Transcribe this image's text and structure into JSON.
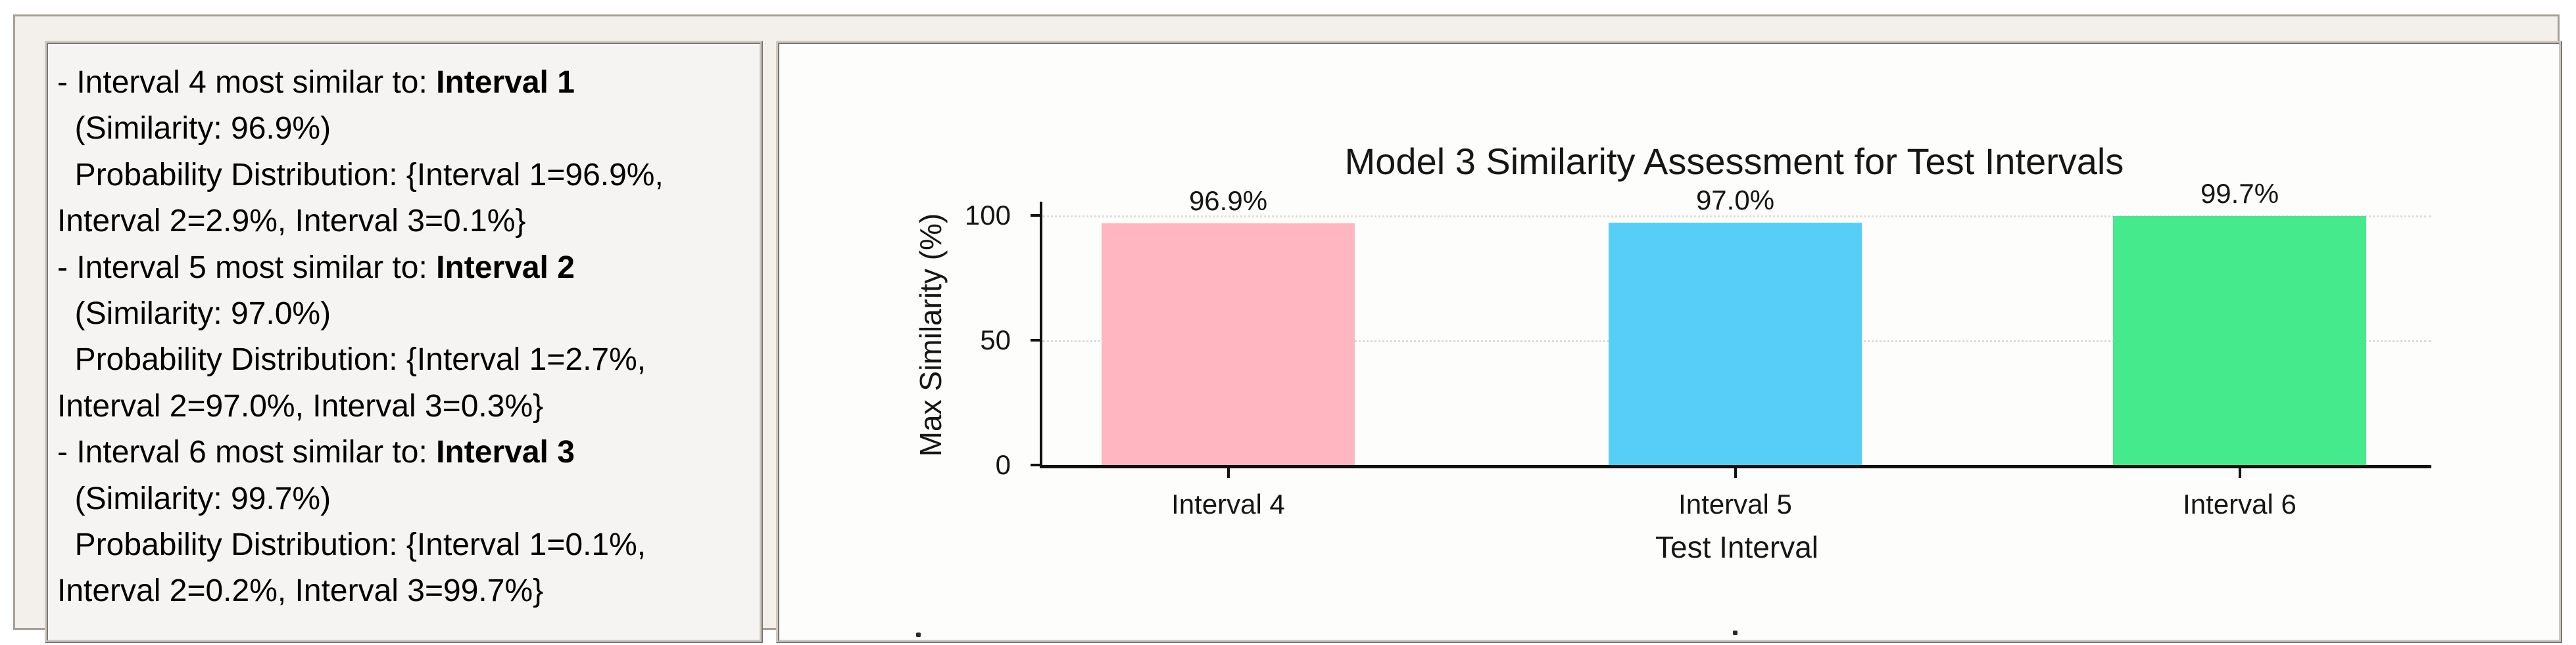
{
  "left_panel": {
    "lines": [
      {
        "pre": "- Interval 4 most similar to: ",
        "bold": "Interval 1"
      },
      {
        "pre": "  (Similarity: 96.9%)",
        "bold": ""
      },
      {
        "pre": "  Probability Distribution: {Interval 1=96.9%,",
        "bold": ""
      },
      {
        "pre": "Interval 2=2.9%, Interval 3=0.1%}",
        "bold": ""
      },
      {
        "pre": "- Interval 5 most similar to: ",
        "bold": "Interval 2"
      },
      {
        "pre": "  (Similarity: 97.0%)",
        "bold": ""
      },
      {
        "pre": "  Probability Distribution: {Interval 1=2.7%,",
        "bold": ""
      },
      {
        "pre": "Interval 2=97.0%, Interval 3=0.3%}",
        "bold": ""
      },
      {
        "pre": "- Interval 6 most similar to: ",
        "bold": "Interval 3"
      },
      {
        "pre": "  (Similarity: 99.7%)",
        "bold": ""
      },
      {
        "pre": "  Probability Distribution: {Interval 1=0.1%,",
        "bold": ""
      },
      {
        "pre": "Interval 2=0.2%, Interval 3=99.7%}",
        "bold": ""
      }
    ]
  },
  "chart_data": {
    "type": "bar",
    "title": "Model 3 Similarity Assessment for Test Intervals",
    "xlabel": "Test Interval",
    "ylabel": "Max Similarity (%)",
    "categories": [
      "Interval 4",
      "Interval 5",
      "Interval 6"
    ],
    "values": [
      96.9,
      97.0,
      99.7
    ],
    "bar_labels": [
      "96.9%",
      "97.0%",
      "99.7%"
    ],
    "bar_colors": [
      "#FFB6C1",
      "#57CEF8",
      "#44EA8C"
    ],
    "yticks": [
      0,
      50,
      100
    ],
    "ylim": [
      0,
      105.5
    ],
    "grid": "horizontal dotted at y=50 and y=100",
    "legend_position": "none",
    "stray_marks": [
      ".",
      "."
    ]
  }
}
